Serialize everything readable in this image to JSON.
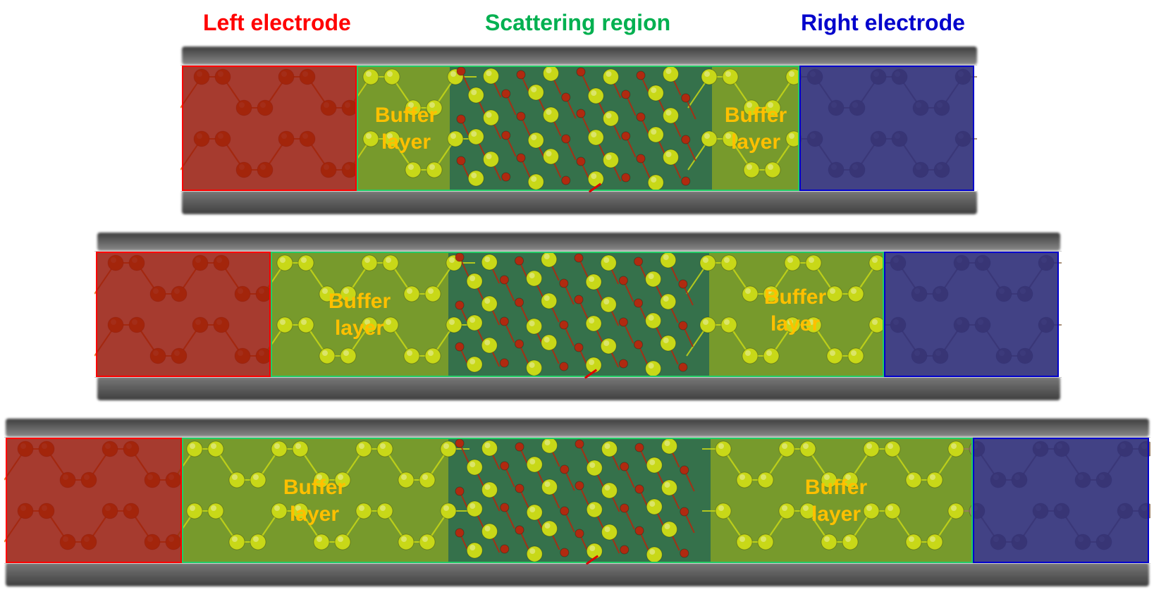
{
  "headers": {
    "left": "Left electrode",
    "scattering": "Scattering region",
    "right": "Right electrode"
  },
  "rows": [
    {
      "buffer_left": "Buffer\nlayer",
      "buffer_right": "Buffer\nlayer"
    },
    {
      "buffer_left": "Buffer\nlayer",
      "buffer_right": "Buffer\nlayer"
    },
    {
      "buffer_left": "Buffer\nlayer",
      "buffer_right": "Buffer\nlayer"
    }
  ],
  "colors": {
    "left_electrode": "#ff0000",
    "scattering_region": "#00b050",
    "right_electrode": "#0000cc",
    "buffer_text": "#ffc000",
    "atom_left": "#e86a10",
    "atom_buffer": "#c8d818",
    "atom_right": "#9c7e62",
    "atom_oxygen": "#b02a10"
  }
}
